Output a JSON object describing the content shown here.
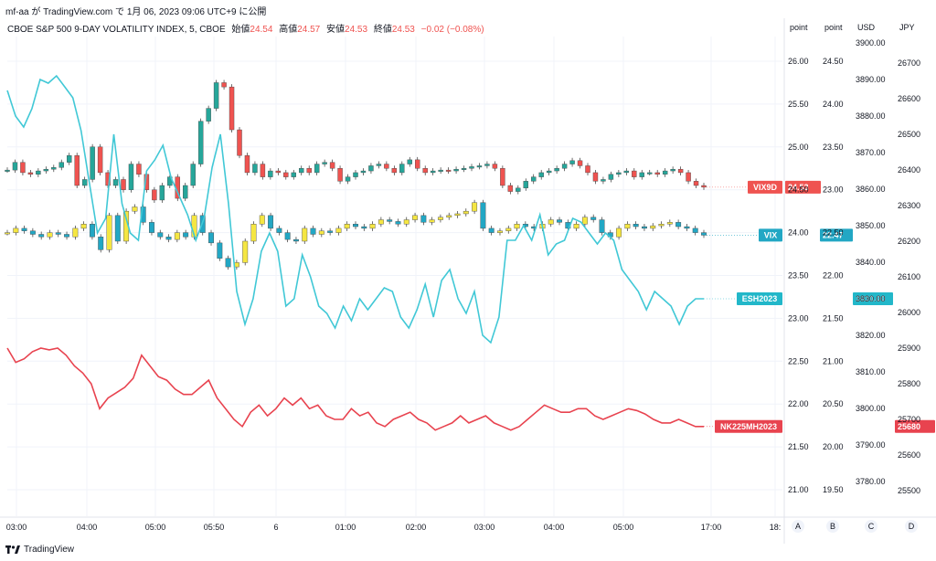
{
  "header": {
    "author_line": "mf-aa が TradingView.com で 1月 06, 2023 09:06 UTC+9 に公開"
  },
  "symbol_title": "CBOE S&P 500 9-DAY VOLATILITY INDEX, 5, CBOE",
  "ohlc": {
    "open_label": "始値",
    "open": "24.54",
    "high_label": "高値",
    "high": "24.57",
    "low_label": "安値",
    "low": "24.53",
    "close_label": "終値",
    "close": "24.53",
    "change": "−0.02 (−0.08%)"
  },
  "footer": {
    "brand": "TradingView"
  },
  "colors": {
    "up": "#26a69a",
    "down": "#ef5350",
    "vix_up": "#f5e642",
    "vix_down": "#22a7c4",
    "es_line": "#41c8d6",
    "nk_line": "#e8434f",
    "grid": "#f0f3fa"
  },
  "chart_data": {
    "type": "line",
    "x_ticks": [
      "03:00",
      "04:00",
      "05:00",
      "05:50",
      "6",
      "01:00",
      "02:00",
      "03:00",
      "04:00",
      "05:00",
      "17:00",
      "18:"
    ],
    "axes": [
      {
        "id": "A",
        "label": "point",
        "ticks": [
          "26.00",
          "25.50",
          "25.00",
          "24.50",
          "24.00",
          "23.50",
          "23.00",
          "22.50",
          "22.00",
          "21.50",
          "21.00"
        ]
      },
      {
        "id": "B",
        "label": "point",
        "ticks": [
          "24.50",
          "24.00",
          "23.50",
          "23.00",
          "22.50",
          "22.00",
          "21.50",
          "21.00",
          "20.50",
          "20.00",
          "19.50"
        ]
      },
      {
        "id": "C",
        "label": "USD",
        "ticks": [
          "3900.00",
          "3890.00",
          "3880.00",
          "3870.00",
          "3860.00",
          "3850.00",
          "3840.00",
          "3830.00",
          "3820.00",
          "3810.00",
          "3800.00",
          "3790.00",
          "3780.00"
        ]
      },
      {
        "id": "D",
        "label": "JPY",
        "ticks": [
          "26700",
          "26600",
          "26500",
          "26400",
          "26300",
          "26200",
          "26100",
          "26000",
          "25900",
          "25800",
          "25700",
          "25600",
          "25500"
        ]
      }
    ],
    "axis_letters": [
      "A",
      "B",
      "C",
      "D"
    ],
    "series": [
      {
        "name": "VIX9D",
        "kind": "candle",
        "axis": "A",
        "last": "24.53",
        "closes": [
          24.73,
          24.82,
          24.7,
          24.68,
          24.72,
          24.74,
          24.76,
          24.82,
          24.9,
          24.55,
          24.62,
          25.0,
          24.7,
          24.55,
          24.62,
          24.5,
          24.8,
          24.68,
          24.5,
          24.38,
          24.55,
          24.65,
          24.4,
          24.55,
          24.8,
          25.3,
          25.45,
          25.75,
          25.7,
          25.2,
          24.9,
          24.7,
          24.8,
          24.65,
          24.72,
          24.7,
          24.65,
          24.7,
          24.75,
          24.7,
          24.8,
          24.82,
          24.75,
          24.6,
          24.65,
          24.7,
          24.72,
          24.78,
          24.8,
          24.75,
          24.7,
          24.8,
          24.85,
          24.75,
          24.7,
          24.72,
          24.73,
          24.72,
          24.74,
          24.75,
          24.77,
          24.78,
          24.8,
          24.75,
          24.55,
          24.48,
          24.52,
          24.6,
          24.65,
          24.7,
          24.72,
          24.75,
          24.8,
          24.84,
          24.78,
          24.7,
          24.6,
          24.62,
          24.68,
          24.7,
          24.72,
          24.65,
          24.7,
          24.7,
          24.68,
          24.72,
          24.74,
          24.7,
          24.6,
          24.55,
          24.53
        ]
      },
      {
        "name": "VIX",
        "kind": "candle",
        "axis": "B",
        "last": "22.47",
        "closes": [
          22.5,
          22.55,
          22.52,
          22.48,
          22.45,
          22.5,
          22.48,
          22.45,
          22.55,
          22.6,
          22.45,
          22.3,
          22.7,
          22.4,
          22.75,
          22.8,
          22.62,
          22.5,
          22.45,
          22.42,
          22.5,
          22.45,
          22.7,
          22.5,
          22.38,
          22.2,
          22.1,
          22.15,
          22.4,
          22.6,
          22.7,
          22.55,
          22.5,
          22.42,
          22.4,
          22.55,
          22.48,
          22.52,
          22.5,
          22.55,
          22.6,
          22.57,
          22.55,
          22.6,
          22.65,
          22.63,
          22.6,
          22.65,
          22.7,
          22.62,
          22.65,
          22.68,
          22.7,
          22.72,
          22.75,
          22.85,
          22.55,
          22.5,
          22.52,
          22.55,
          22.6,
          22.57,
          22.55,
          22.6,
          22.65,
          22.62,
          22.55,
          22.6,
          22.68,
          22.65,
          22.5,
          22.45,
          22.55,
          22.6,
          22.57,
          22.55,
          22.58,
          22.6,
          22.62,
          22.57,
          22.55,
          22.5,
          22.47
        ]
      },
      {
        "name": "ESH2023",
        "kind": "line",
        "axis": "C",
        "last": "3830.00",
        "closes": [
          3887,
          3880,
          3877,
          3882,
          3890,
          3889,
          3891,
          3888,
          3885,
          3876,
          3862,
          3848,
          3852,
          3875,
          3856,
          3848,
          3846,
          3865,
          3868,
          3872,
          3863,
          3858,
          3853,
          3846,
          3852,
          3866,
          3875,
          3856,
          3832,
          3823,
          3830,
          3843,
          3848,
          3843,
          3828,
          3830,
          3842,
          3836,
          3828,
          3826,
          3822,
          3828,
          3824,
          3830,
          3827,
          3830,
          3833,
          3832,
          3825,
          3822,
          3827,
          3834,
          3825,
          3835,
          3838,
          3830,
          3826,
          3832,
          3820,
          3818,
          3825,
          3846,
          3846,
          3850,
          3846,
          3853,
          3842,
          3845,
          3846,
          3852,
          3851,
          3848,
          3845,
          3848,
          3846,
          3838,
          3835,
          3832,
          3827,
          3832,
          3830,
          3828,
          3823,
          3828,
          3830,
          3830
        ]
      },
      {
        "name": "NK225MH2023",
        "kind": "line",
        "axis": "D",
        "last": "25680",
        "closes": [
          25900,
          25860,
          25870,
          25890,
          25900,
          25895,
          25900,
          25880,
          25850,
          25830,
          25800,
          25730,
          25760,
          25775,
          25790,
          25815,
          25880,
          25850,
          25820,
          25810,
          25785,
          25770,
          25770,
          25790,
          25810,
          25760,
          25730,
          25700,
          25680,
          25720,
          25740,
          25710,
          25730,
          25760,
          25740,
          25760,
          25730,
          25740,
          25710,
          25700,
          25700,
          25730,
          25710,
          25720,
          25690,
          25680,
          25700,
          25710,
          25720,
          25700,
          25690,
          25670,
          25680,
          25690,
          25710,
          25690,
          25700,
          25710,
          25690,
          25680,
          25670,
          25680,
          25700,
          25720,
          25740,
          25730,
          25720,
          25720,
          25730,
          25730,
          25710,
          25700,
          25710,
          25720,
          25730,
          25725,
          25715,
          25700,
          25690,
          25690,
          25700,
          25690,
          25680,
          25680
        ]
      }
    ]
  }
}
